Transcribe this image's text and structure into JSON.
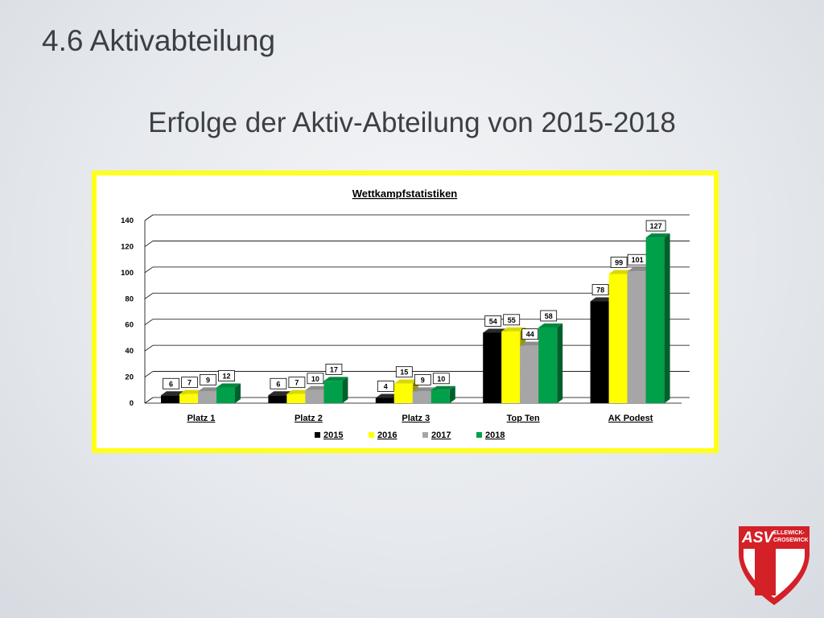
{
  "slide": {
    "title": "4.6 Aktivabteilung",
    "subtitle": "Erfolge der Aktiv-Abteilung von 2015-2018"
  },
  "logo": {
    "text": "ASV",
    "subtext_line1": "ELLEWICK-",
    "subtext_line2": "CROSEWICK",
    "colors": {
      "red": "#d42027",
      "white": "#ffffff"
    }
  },
  "colors": {
    "frame": "#ffff1a",
    "text": "#3c3f44"
  },
  "chart_data": {
    "type": "bar",
    "title": "Wettkampfstatistiken",
    "categories": [
      "Platz 1",
      "Platz 2",
      "Platz 3",
      "Top Ten",
      "AK Podest"
    ],
    "series": [
      {
        "name": "2015",
        "values": [
          6,
          6,
          4,
          54,
          78
        ],
        "color": "#000000"
      },
      {
        "name": "2016",
        "values": [
          7,
          7,
          15,
          55,
          99
        ],
        "color": "#ffff00"
      },
      {
        "name": "2017",
        "values": [
          9,
          10,
          9,
          44,
          101
        ],
        "color": "#a6a6a6"
      },
      {
        "name": "2018",
        "values": [
          12,
          17,
          10,
          58,
          127
        ],
        "color": "#00a04a"
      }
    ],
    "ylim": [
      0,
      140
    ],
    "yticks": [
      0,
      20,
      40,
      60,
      80,
      100,
      120,
      140
    ],
    "xlabel": "",
    "ylabel": "",
    "grid": true,
    "data_labels": true,
    "legend_position": "bottom",
    "style": "3d"
  }
}
